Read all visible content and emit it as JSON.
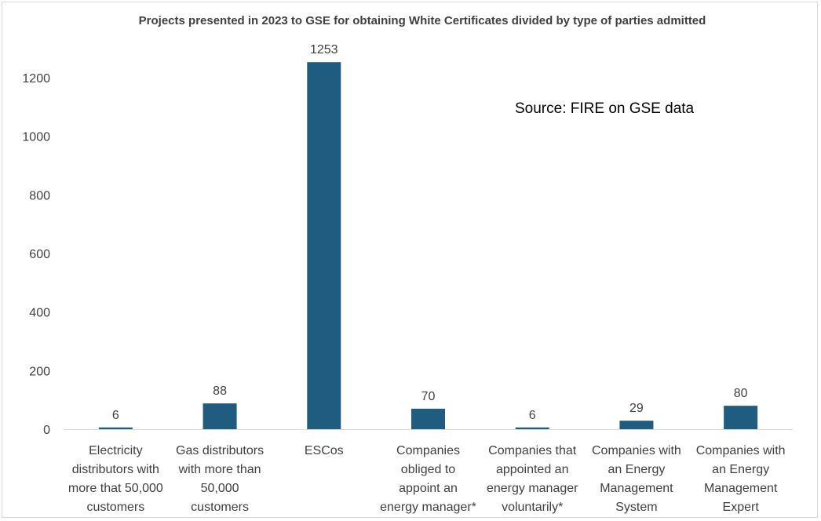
{
  "chart_data": {
    "type": "bar",
    "title": "Projects presented in 2023 to GSE for obtaining White Certificates divided by type of parties admitted",
    "annotation": "Source: FIRE on GSE data",
    "xlabel": "",
    "ylabel": "",
    "ylim": [
      0,
      1300
    ],
    "yticks": [
      0,
      200,
      400,
      600,
      800,
      1000,
      1200
    ],
    "grid": false,
    "legend": "none",
    "bar_color": "#1f5c7f",
    "categories": [
      [
        "Electricity",
        "distributors with",
        "more that 50,000",
        "customers"
      ],
      [
        "Gas distributors",
        "with more than",
        "50,000",
        "customers"
      ],
      [
        "ESCos"
      ],
      [
        "Companies",
        "obliged to",
        "appoint an",
        "energy manager*"
      ],
      [
        "Companies that",
        "appointed an",
        "energy manager",
        "voluntarily*"
      ],
      [
        "Companies with",
        "an Energy",
        "Management",
        "System"
      ],
      [
        "Companies with",
        "an Energy",
        "Management",
        "Expert"
      ]
    ],
    "values": [
      6,
      88,
      1253,
      70,
      6,
      29,
      80
    ],
    "data_labels": [
      "6",
      "88",
      "1253",
      "70",
      "6",
      "29",
      "80"
    ]
  }
}
